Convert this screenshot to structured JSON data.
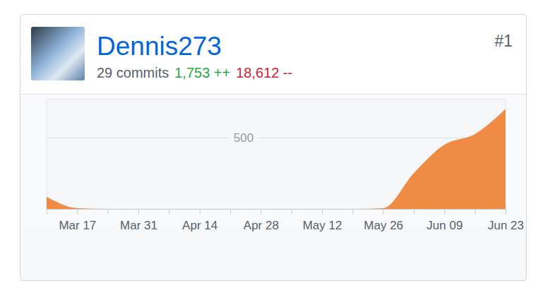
{
  "header": {
    "name": "Dennis273",
    "rank": "#1",
    "commits": "29 commits",
    "additions": "1,753 ++",
    "deletions": "18,612 --"
  },
  "chart_data": {
    "type": "area",
    "categories": [
      null,
      "Mar 17",
      null,
      "Mar 31",
      null,
      "Apr 14",
      null,
      "Apr 28",
      null,
      "May 12",
      null,
      "May 26",
      null,
      "Jun 09",
      null,
      "Jun 23"
    ],
    "values": [
      85,
      5,
      0,
      0,
      0,
      0,
      0,
      0,
      0,
      0,
      0,
      5,
      250,
      450,
      525,
      700
    ],
    "color": "#ef8b45",
    "ylim": [
      0,
      770
    ],
    "yticks": [
      500
    ],
    "grid": true
  }
}
